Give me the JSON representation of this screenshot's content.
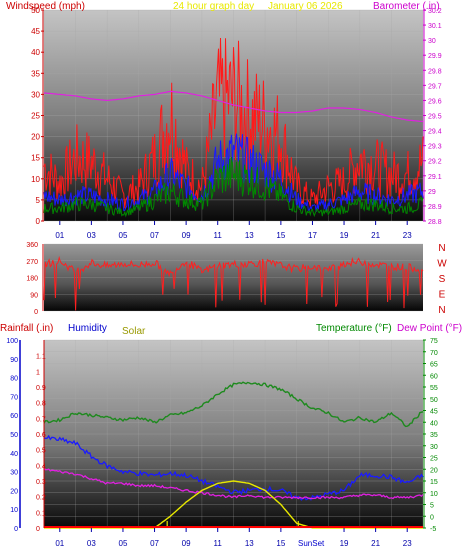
{
  "header": {
    "left_title": "Windspeed (mph)",
    "center_title": "24 hour graph day",
    "date": "January 06 2026",
    "right_title": "Barometer (.in)"
  },
  "lower_header": {
    "rainfall": "Rainfall (.in)",
    "humidity": "Humidity",
    "solar": "Solar",
    "temperature": "Temperature (°F)",
    "dewpoint": "Dew Point (°F)"
  },
  "colors": {
    "wind_gust": "#ff1a1a",
    "wind_avg": "#1a1aff",
    "wind_low": "#008800",
    "barometer": "#e020e0",
    "direction": "#ff2020",
    "temperature": "#1e8a1e",
    "humidity": "#1a1aff",
    "dewpoint": "#e020e0",
    "solar": "#e8e800",
    "rain": "#ff0000",
    "left_axis_text": "#cc0000",
    "right_axis_text": "#cc00cc",
    "green_axis_text": "#008800",
    "blue_axis_text": "#0000cc",
    "solar_text": "#999900",
    "title_yellow": "#e8e800"
  },
  "x_ticks": [
    "01",
    "03",
    "05",
    "07",
    "09",
    "11",
    "13",
    "15",
    "17",
    "19",
    "21",
    "23"
  ],
  "lower_x_ticks": [
    "01",
    "03",
    "05",
    "07",
    "09",
    "11",
    "13",
    "15",
    "19",
    "21",
    "23"
  ],
  "sunset_label": "SunSet",
  "wind_axis": {
    "ticks": [
      "0",
      "5",
      "10",
      "15",
      "20",
      "25",
      "30",
      "35",
      "40",
      "45",
      "50"
    ]
  },
  "baro_axis": {
    "ticks": [
      "28.8",
      "28.9",
      "29",
      "29.1",
      "29.2",
      "29.3",
      "29.4",
      "29.5",
      "29.6",
      "29.7",
      "29.8",
      "29.9",
      "30",
      "30.1",
      "30.2"
    ]
  },
  "dir_axis": {
    "ticks": [
      "0",
      "90",
      "180",
      "270",
      "360"
    ],
    "compass": [
      "N",
      "W",
      "S",
      "E",
      "N"
    ]
  },
  "humidity_axis": {
    "ticks": [
      "0",
      "10",
      "20",
      "30",
      "40",
      "50",
      "60",
      "70",
      "80",
      "90",
      "100"
    ]
  },
  "rain_axis": {
    "ticks": [
      "0",
      "0.1",
      "0.2",
      "0.3",
      "0.4",
      "0.5",
      "0.6",
      "0.7",
      "0.8",
      "0.9",
      "1",
      "1.1"
    ]
  },
  "temp_axis": {
    "ticks": [
      "-5",
      "0",
      "5",
      "10",
      "15",
      "20",
      "25",
      "30",
      "35",
      "40",
      "45",
      "50",
      "55",
      "60",
      "65",
      "70",
      "75"
    ]
  },
  "chart_data": [
    {
      "type": "line",
      "title": "24 hour graph day",
      "xlabel": "",
      "ylabel": "Windspeed (mph)",
      "ylim": [
        0,
        50
      ],
      "y2label": "Barometer (.in)",
      "y2lim": [
        28.8,
        30.2
      ],
      "x": [
        0,
        1,
        2,
        3,
        4,
        5,
        6,
        7,
        8,
        9,
        10,
        11,
        12,
        13,
        14,
        15,
        16,
        17,
        18,
        19,
        20,
        21,
        22,
        23,
        24
      ],
      "series": [
        {
          "name": "Windspeed (mph)",
          "values": [
            13,
            9,
            15,
            14,
            10,
            6,
            8,
            15,
            26,
            12,
            8,
            28,
            29,
            25,
            23,
            20,
            8,
            5,
            8,
            9,
            15,
            13,
            11,
            11,
            14
          ]
        },
        {
          "name": "",
          "values": [
            6,
            5,
            6,
            6,
            5,
            4,
            5,
            7,
            11,
            8,
            6,
            14,
            16,
            14,
            12,
            10,
            5,
            3,
            4,
            5,
            7,
            6,
            5,
            6,
            7
          ]
        },
        {
          "name": "",
          "values": [
            3,
            3,
            4,
            4,
            3,
            2,
            3,
            5,
            7,
            5,
            4,
            10,
            11,
            10,
            8,
            6,
            3,
            2,
            2,
            3,
            4,
            4,
            3,
            3,
            4
          ]
        },
        {
          "name": "Barometer (.in)",
          "axis": "y2",
          "values": [
            29.65,
            29.64,
            29.63,
            29.61,
            29.6,
            29.61,
            29.63,
            29.64,
            29.66,
            29.65,
            29.63,
            29.6,
            29.57,
            29.55,
            29.53,
            29.52,
            29.52,
            29.53,
            29.55,
            29.55,
            29.54,
            29.52,
            29.49,
            29.47,
            29.46
          ]
        }
      ]
    },
    {
      "type": "line",
      "title": "",
      "ylabel": "",
      "ylim": [
        0,
        360
      ],
      "x": [
        0,
        1,
        2,
        3,
        4,
        5,
        6,
        7,
        8,
        9,
        10,
        11,
        12,
        13,
        14,
        15,
        16,
        17,
        18,
        19,
        20,
        21,
        22,
        23,
        24
      ],
      "series": [
        {
          "name": "",
          "values": [
            250,
            270,
            210,
            260,
            240,
            255,
            245,
            260,
            200,
            270,
            210,
            245,
            250,
            255,
            260,
            245,
            225,
            240,
            220,
            255,
            265,
            250,
            240,
            235,
            225
          ]
        }
      ]
    },
    {
      "type": "line",
      "title": "",
      "ylabel": "Humidity",
      "ylim": [
        0,
        100
      ],
      "y2label": "Temperature (°F)",
      "y2lim": [
        -5,
        75
      ],
      "x": [
        0,
        1,
        2,
        3,
        4,
        5,
        6,
        7,
        8,
        9,
        10,
        11,
        12,
        13,
        14,
        15,
        16,
        17,
        18,
        19,
        20,
        21,
        22,
        23,
        24
      ],
      "series": [
        {
          "name": "Humidity",
          "values": [
            48,
            47,
            45,
            38,
            33,
            30,
            29,
            28,
            29,
            28,
            25,
            22,
            19,
            20,
            21,
            20,
            16,
            16,
            18,
            20,
            28,
            28,
            27,
            24,
            28
          ]
        },
        {
          "name": "Temperature (°F)",
          "axis": "y2",
          "values": [
            40,
            41,
            44,
            43,
            42,
            41,
            42,
            40,
            43,
            44,
            47,
            52,
            56,
            57,
            56,
            54,
            50,
            46,
            44,
            40,
            42,
            40,
            44,
            38,
            45
          ]
        },
        {
          "name": "Dew Point (°F)",
          "axis": "y2",
          "values": [
            20,
            19,
            18,
            16,
            14,
            14,
            13,
            13,
            12,
            11,
            10,
            9,
            8,
            9,
            8,
            8,
            8,
            8,
            8,
            8,
            9,
            9,
            8,
            8,
            9
          ]
        },
        {
          "name": "Solar",
          "axis": "y2",
          "values": [
            -5,
            -5,
            -5,
            -5,
            -5,
            -5,
            -5,
            -5,
            0,
            6,
            11,
            14,
            15,
            14,
            11,
            5,
            -3,
            -5,
            -5,
            -5,
            -5,
            -5,
            -5,
            -5,
            -5
          ]
        },
        {
          "name": "Rainfall (.in)",
          "axis": "rain",
          "values": [
            0,
            0,
            0,
            0,
            0,
            0,
            0,
            0,
            0,
            0,
            0,
            0,
            0,
            0,
            0,
            0,
            0,
            0,
            0,
            0,
            0,
            0,
            0,
            0,
            0
          ]
        }
      ]
    }
  ]
}
